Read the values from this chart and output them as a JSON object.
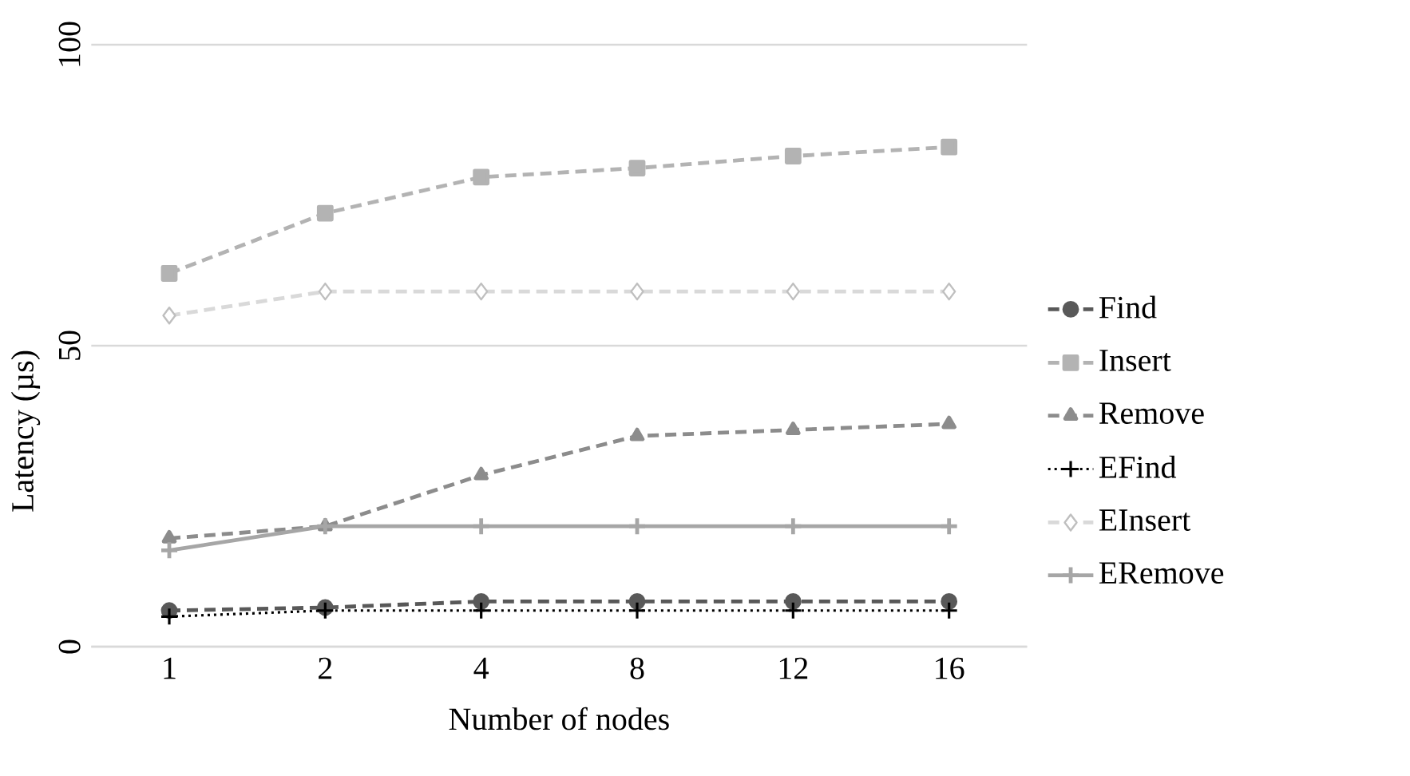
{
  "chart_data": {
    "type": "line",
    "xlabel": "Number of nodes",
    "ylabel": "Latency (µs)",
    "categories": [
      "1",
      "2",
      "4",
      "8",
      "12",
      "16"
    ],
    "ylim": [
      0,
      100
    ],
    "yticks": [
      0,
      50,
      100
    ],
    "grid": "y",
    "legend": "right",
    "series": [
      {
        "name": "Find",
        "color": "#595959",
        "marker": "circle",
        "line_style": "dashed",
        "values": [
          6,
          6.5,
          7.5,
          7.5,
          7.5,
          7.5
        ]
      },
      {
        "name": "Insert",
        "color": "#b3b3b3",
        "marker": "square",
        "line_style": "dashed",
        "values": [
          62,
          72,
          78,
          79.5,
          81.5,
          83
        ]
      },
      {
        "name": "Remove",
        "color": "#8c8c8c",
        "marker": "triangle",
        "line_style": "dashed",
        "values": [
          18,
          20,
          28.5,
          35,
          36,
          37
        ]
      },
      {
        "name": "EFind",
        "color": "#000000",
        "marker": "cross",
        "line_style": "dotted",
        "values": [
          5,
          6,
          6,
          6,
          6,
          6
        ]
      },
      {
        "name": "EInsert",
        "color": "#d9d9d9",
        "marker": "diamond",
        "line_style": "dashed",
        "values": [
          55,
          59,
          59,
          59,
          59,
          59
        ]
      },
      {
        "name": "ERemove",
        "color": "#a6a6a6",
        "marker": "cross",
        "line_style": "solid",
        "values": [
          16,
          20,
          20,
          20,
          20,
          20
        ]
      }
    ]
  }
}
